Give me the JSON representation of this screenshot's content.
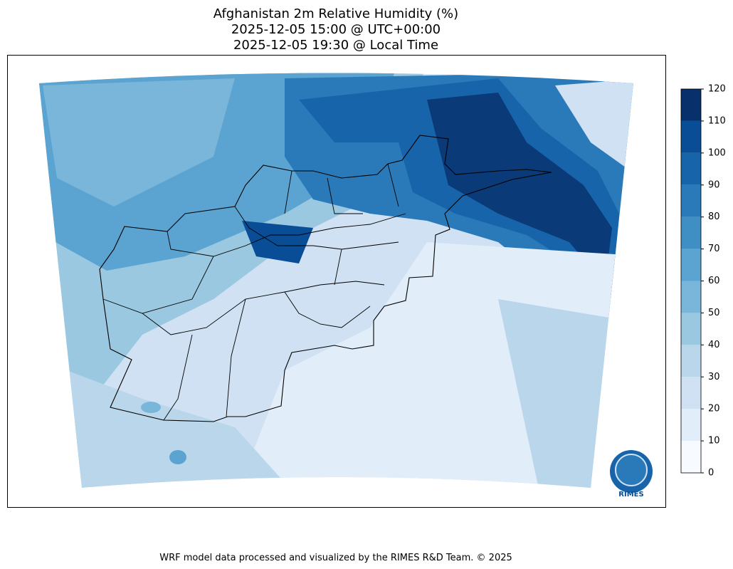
{
  "title": [
    "Afghanistan 2m Relative Humidity (%)",
    "2025-12-05 15:00 @ UTC+00:00",
    "2025-12-05 19:30 @ Local Time"
  ],
  "colorbar": {
    "ticks": [
      0,
      10,
      20,
      30,
      40,
      50,
      60,
      70,
      80,
      90,
      100,
      110,
      120
    ],
    "colors": [
      "#f7fbff",
      "#e1edf8",
      "#cfe1f2",
      "#b9d6ea",
      "#9ac8e0",
      "#7ab6d9",
      "#5ba3d0",
      "#3f8fc5",
      "#2a7aba",
      "#1764ab",
      "#084d96",
      "#08306b"
    ]
  },
  "logo": "RIMES",
  "footer": "WRF model data processed and visualized by the RIMES R&D Team. © 2025"
}
